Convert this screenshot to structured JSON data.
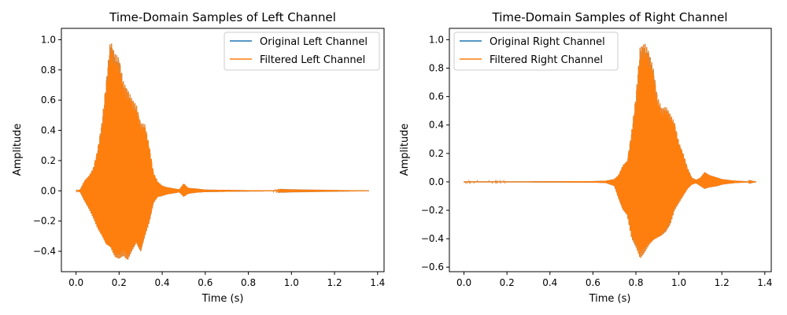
{
  "colors": {
    "original": "#1f77b4",
    "filtered": "#ff7f0e"
  },
  "chart_data": [
    {
      "type": "line",
      "title": "Time-Domain Samples of Left Channel",
      "xlabel": "Time (s)",
      "ylabel": "Amplitude",
      "xlim": [
        -0.068,
        1.43
      ],
      "ylim": [
        -0.535,
        1.075
      ],
      "xticks": [
        0.0,
        0.2,
        0.4,
        0.6,
        0.8,
        1.0,
        1.2,
        1.4
      ],
      "xtick_labels": [
        "0.0",
        "0.2",
        "0.4",
        "0.6",
        "0.8",
        "1.0",
        "1.2",
        "1.4"
      ],
      "yticks": [
        -0.4,
        -0.2,
        0.0,
        0.2,
        0.4,
        0.6,
        0.8,
        1.0
      ],
      "ytick_labels": [
        "−0.4",
        "−0.2",
        "0.0",
        "0.2",
        "0.4",
        "0.6",
        "0.8",
        "1.0"
      ],
      "legend_position": "top-right",
      "duration": 1.36,
      "envelope": {
        "t": [
          0.0,
          0.02,
          0.04,
          0.06,
          0.08,
          0.1,
          0.12,
          0.14,
          0.16,
          0.18,
          0.2,
          0.22,
          0.24,
          0.26,
          0.28,
          0.3,
          0.32,
          0.34,
          0.36,
          0.38,
          0.4,
          0.42,
          0.44,
          0.48,
          0.5,
          0.52,
          0.56,
          0.6,
          0.7,
          0.8,
          0.9,
          1.0,
          1.2,
          1.36
        ],
        "upper": [
          0.0,
          0.01,
          0.07,
          0.1,
          0.15,
          0.27,
          0.45,
          0.72,
          1.0,
          0.91,
          0.88,
          0.72,
          0.67,
          0.61,
          0.57,
          0.45,
          0.44,
          0.3,
          0.12,
          0.06,
          0.035,
          0.025,
          0.02,
          0.01,
          0.05,
          0.02,
          0.015,
          0.008,
          0.006,
          0.004,
          0.003,
          0.002,
          0.001,
          0.0
        ],
        "lower": [
          0.0,
          -0.01,
          -0.07,
          -0.12,
          -0.18,
          -0.25,
          -0.3,
          -0.36,
          -0.38,
          -0.44,
          -0.45,
          -0.43,
          -0.46,
          -0.4,
          -0.35,
          -0.41,
          -0.3,
          -0.21,
          -0.08,
          -0.04,
          -0.035,
          -0.025,
          -0.02,
          -0.01,
          -0.04,
          -0.02,
          -0.012,
          -0.008,
          -0.006,
          -0.004,
          -0.003,
          -0.002,
          -0.001,
          0.0
        ]
      },
      "series": [
        {
          "name": "Original Left Channel",
          "color": "#1f77b4"
        },
        {
          "name": "Filtered Left Channel",
          "color": "#ff7f0e"
        }
      ]
    },
    {
      "type": "line",
      "title": "Time-Domain Samples of Right Channel",
      "xlabel": "Time (s)",
      "ylabel": "Amplitude",
      "xlim": [
        -0.068,
        1.43
      ],
      "ylim": [
        -0.632,
        1.08
      ],
      "xticks": [
        0.0,
        0.2,
        0.4,
        0.6,
        0.8,
        1.0,
        1.2,
        1.4
      ],
      "xtick_labels": [
        "0.0",
        "0.2",
        "0.4",
        "0.6",
        "0.8",
        "1.0",
        "1.2",
        "1.4"
      ],
      "yticks": [
        -0.6,
        -0.4,
        -0.2,
        0.0,
        0.2,
        0.4,
        0.6,
        0.8,
        1.0
      ],
      "ytick_labels": [
        "−0.6",
        "−0.4",
        "−0.2",
        "0.0",
        "0.2",
        "0.4",
        "0.6",
        "0.8",
        "1.0"
      ],
      "legend_position": "top-left",
      "duration": 1.36,
      "envelope": {
        "t": [
          0.0,
          0.2,
          0.4,
          0.6,
          0.66,
          0.7,
          0.72,
          0.74,
          0.76,
          0.78,
          0.8,
          0.82,
          0.84,
          0.86,
          0.88,
          0.9,
          0.92,
          0.94,
          0.96,
          0.98,
          1.0,
          1.02,
          1.04,
          1.06,
          1.08,
          1.1,
          1.12,
          1.14,
          1.18,
          1.2,
          1.25,
          1.3,
          1.36
        ],
        "upper": [
          0.003,
          0.003,
          0.004,
          0.005,
          0.008,
          0.02,
          0.05,
          0.12,
          0.15,
          0.35,
          0.6,
          0.95,
          0.98,
          0.92,
          0.81,
          0.6,
          0.52,
          0.53,
          0.48,
          0.42,
          0.28,
          0.2,
          0.1,
          0.03,
          0.015,
          0.03,
          0.07,
          0.05,
          0.03,
          0.02,
          0.01,
          0.005,
          0.0
        ],
        "lower": [
          -0.003,
          -0.003,
          -0.004,
          -0.005,
          -0.008,
          -0.03,
          -0.12,
          -0.2,
          -0.24,
          -0.4,
          -0.46,
          -0.54,
          -0.5,
          -0.45,
          -0.42,
          -0.4,
          -0.38,
          -0.35,
          -0.3,
          -0.2,
          -0.15,
          -0.1,
          -0.05,
          -0.02,
          -0.01,
          -0.03,
          -0.05,
          -0.04,
          -0.03,
          -0.02,
          -0.01,
          -0.005,
          0.0
        ]
      },
      "series": [
        {
          "name": "Original Right Channel",
          "color": "#1f77b4"
        },
        {
          "name": "Filtered Right Channel",
          "color": "#ff7f0e"
        }
      ]
    }
  ]
}
